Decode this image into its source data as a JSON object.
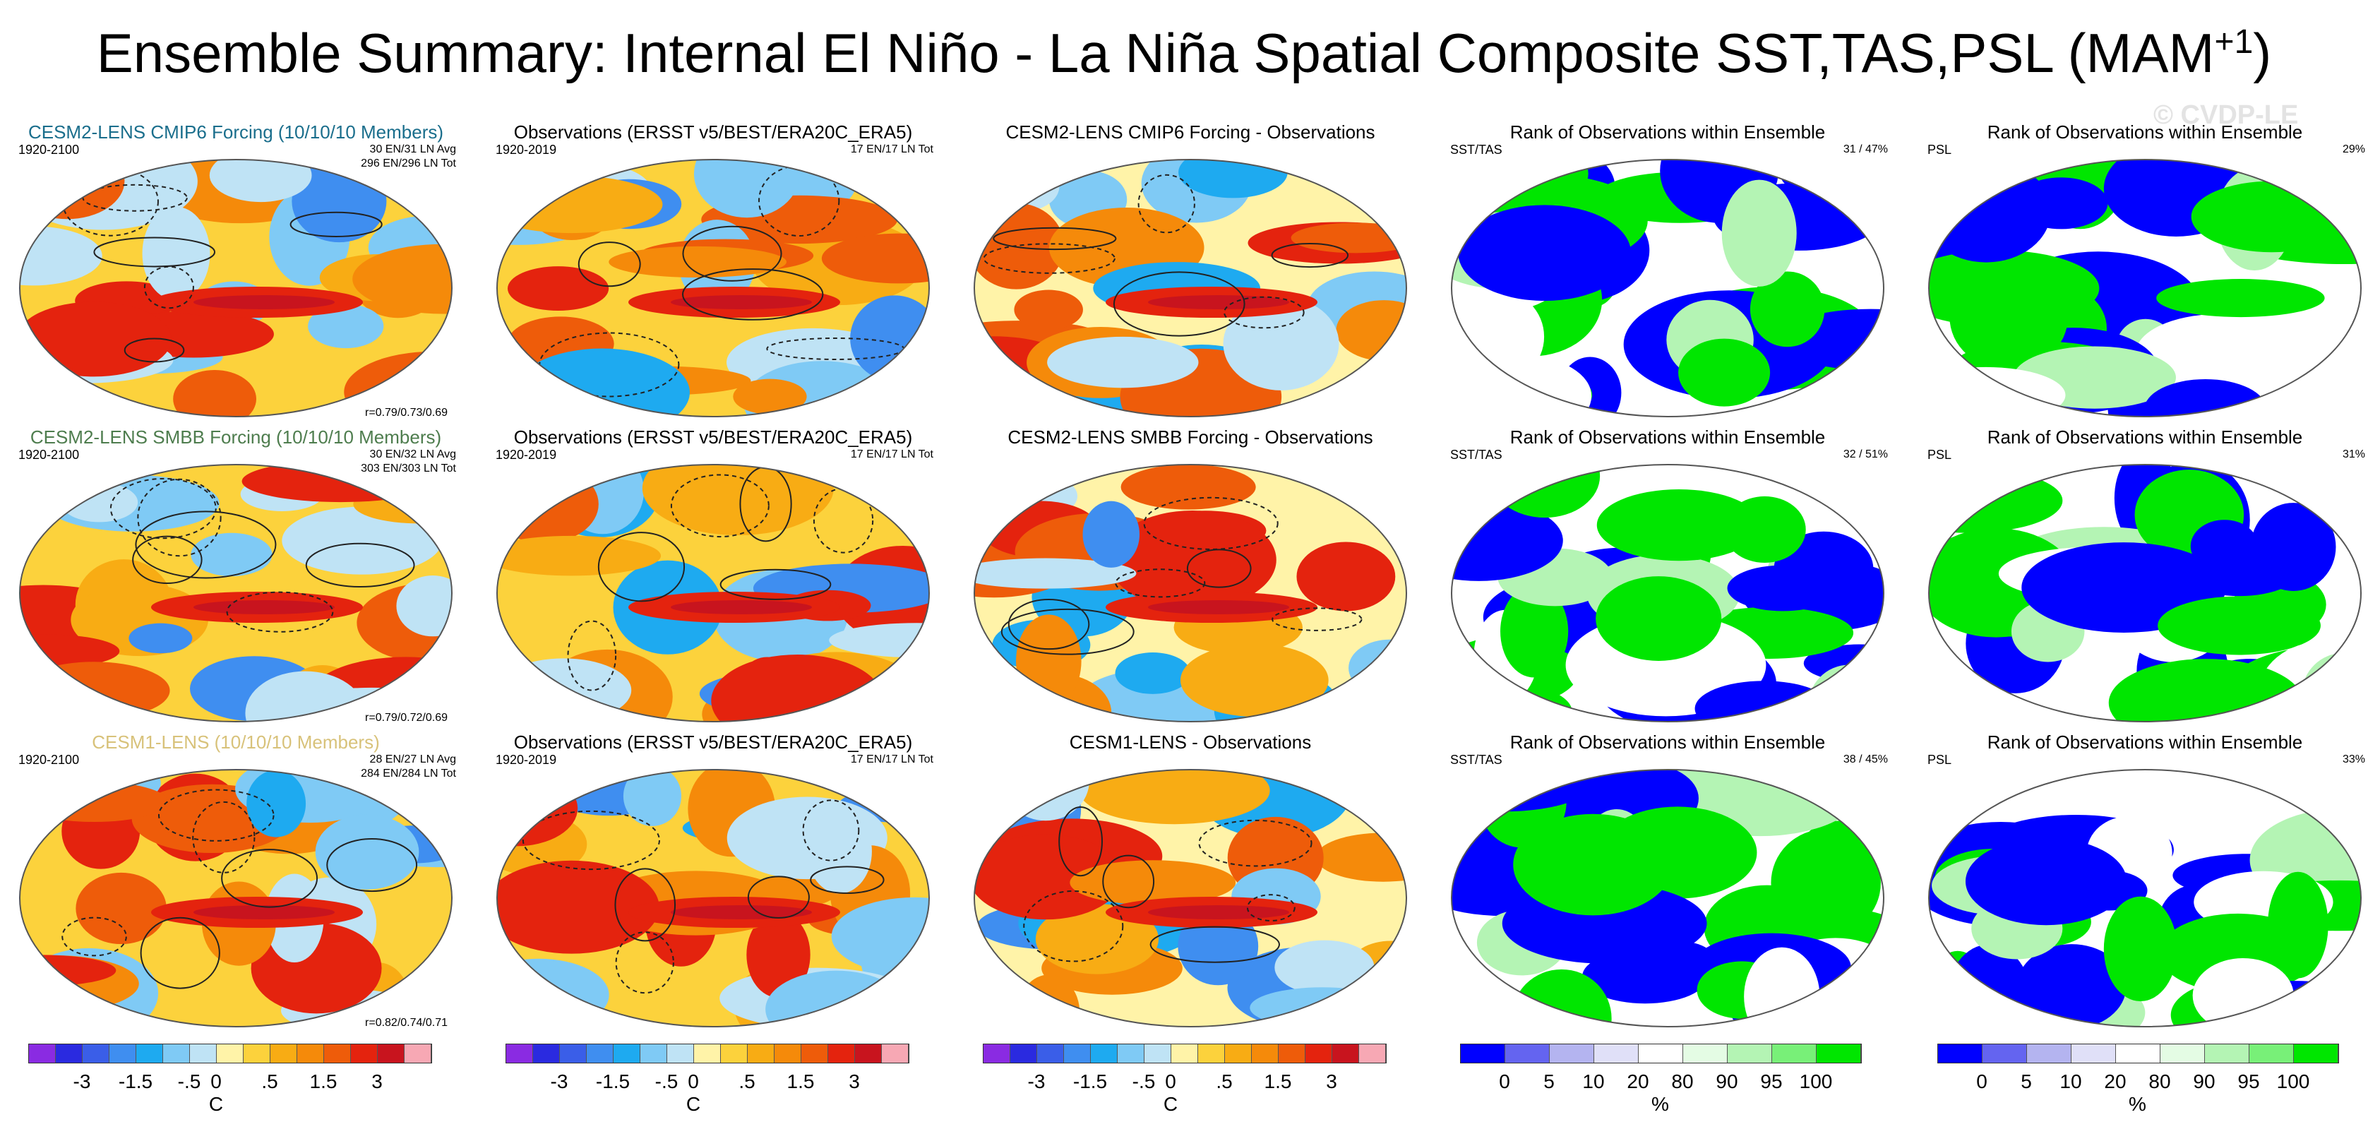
{
  "title": "Ensemble Summary: Internal El Niño - La Niña Spatial Composite SST,TAS,PSL (MAM",
  "title_sup": "+1",
  "watermark": "© CVDP-LE",
  "rows": [
    {
      "ensemble": {
        "title": "CESM2-LENS CMIP6 Forcing (10/10/10 Members)",
        "title_color": "#1a6e8c",
        "years": "1920-2100",
        "info1": "30 EN/31 LN Avg",
        "info2": "296 EN/296 LN Tot",
        "corr": "r=0.79/0.73/0.69"
      },
      "obs": {
        "title": "Observations (ERSST v5/BEST/ERA20C_ERA5)",
        "years": "1920-2019",
        "info": "17 EN/17 LN Tot"
      },
      "diff": {
        "title": "CESM2-LENS CMIP6 Forcing - Observations"
      },
      "rank_sst": {
        "title": "Rank of Observations within Ensemble",
        "label": "SST/TAS",
        "pct": "31 /  47%"
      },
      "rank_psl": {
        "title": "Rank of Observations within Ensemble",
        "label": "PSL",
        "pct": "29%"
      }
    },
    {
      "ensemble": {
        "title": "CESM2-LENS SMBB Forcing (10/10/10 Members)",
        "title_color": "#4e7d4e",
        "years": "1920-2100",
        "info1": "30 EN/32 LN Avg",
        "info2": "303 EN/303 LN Tot",
        "corr": "r=0.79/0.72/0.69"
      },
      "obs": {
        "title": "Observations (ERSST v5/BEST/ERA20C_ERA5)",
        "years": "1920-2019",
        "info": "17 EN/17 LN Tot"
      },
      "diff": {
        "title": "CESM2-LENS SMBB Forcing - Observations"
      },
      "rank_sst": {
        "title": "Rank of Observations within Ensemble",
        "label": "SST/TAS",
        "pct": "32 /  51%"
      },
      "rank_psl": {
        "title": "Rank of Observations within Ensemble",
        "label": "PSL",
        "pct": "31%"
      }
    },
    {
      "ensemble": {
        "title": "CESM1-LENS (10/10/10 Members)",
        "title_color": "#d8c27a",
        "years": "1920-2100",
        "info1": "28 EN/27 LN Avg",
        "info2": "284 EN/284 LN Tot",
        "corr": "r=0.82/0.74/0.71"
      },
      "obs": {
        "title": "Observations (ERSST v5/BEST/ERA20C_ERA5)",
        "years": "1920-2019",
        "info": "17 EN/17 LN Tot"
      },
      "diff": {
        "title": "CESM1-LENS - Observations"
      },
      "rank_sst": {
        "title": "Rank of Observations within Ensemble",
        "label": "SST/TAS",
        "pct": "38 /  45%"
      },
      "rank_psl": {
        "title": "Rank of Observations within Ensemble",
        "label": "PSL",
        "pct": "33%"
      }
    }
  ],
  "colorbars": {
    "sst": {
      "colors": [
        "#8a2be2",
        "#2a2ae0",
        "#3a5ee8",
        "#3f8ef0",
        "#1eaaf0",
        "#7fcaf5",
        "#bfe3f5",
        "#fff3a8",
        "#fcd23c",
        "#f8ac14",
        "#f58a0a",
        "#ee5c0a",
        "#e4230e",
        "#c8141e",
        "#f7a8b4"
      ],
      "labels": [
        "-3",
        "-1.5",
        "-.5",
        "0",
        ".5",
        "1.5",
        "3"
      ],
      "unit": "C"
    },
    "rank": {
      "colors": [
        "#0000ff",
        "#6464f0",
        "#b4b4f0",
        "#e0e0f8",
        "#ffffff",
        "#e4fce4",
        "#b4f4b4",
        "#78f078",
        "#00e600"
      ],
      "labels": [
        "0",
        "5",
        "10",
        "20",
        "80",
        "90",
        "95",
        "100"
      ],
      "unit": "%"
    }
  },
  "chart_data": [
    {
      "type": "heatmap",
      "title": "Ensemble Summary: Internal El Niño - La Niña Spatial Composite SST,TAS,PSL (MAM+1)",
      "description_panels": "3 rows x 5 columns of global map panels",
      "sst_tas_colorbar": {
        "unit": "C",
        "tick_labels": [
          -3,
          -1.5,
          -0.5,
          0,
          0.5,
          1.5,
          3
        ],
        "contours": "PSL (solid positive, dashed negative)"
      },
      "rank_colorbar": {
        "unit": "%",
        "tick_labels": [
          0,
          5,
          10,
          20,
          80,
          90,
          95,
          100
        ]
      },
      "rank_pct": [
        {
          "row": "CESM2-LENS CMIP6 Forcing",
          "sst_tas": [
            31,
            47
          ],
          "psl": 29
        },
        {
          "row": "CESM2-LENS SMBB Forcing",
          "sst_tas": [
            32,
            51
          ],
          "psl": 31
        },
        {
          "row": "CESM1-LENS",
          "sst_tas": [
            38,
            45
          ],
          "psl": 33
        }
      ],
      "pattern_correlations": [
        {
          "row": "CESM2-LENS CMIP6 Forcing",
          "r": [
            0.79,
            0.73,
            0.69
          ]
        },
        {
          "row": "CESM2-LENS SMBB Forcing",
          "r": [
            0.79,
            0.72,
            0.69
          ]
        },
        {
          "row": "CESM1-LENS",
          "r": [
            0.82,
            0.74,
            0.71
          ]
        }
      ]
    }
  ]
}
